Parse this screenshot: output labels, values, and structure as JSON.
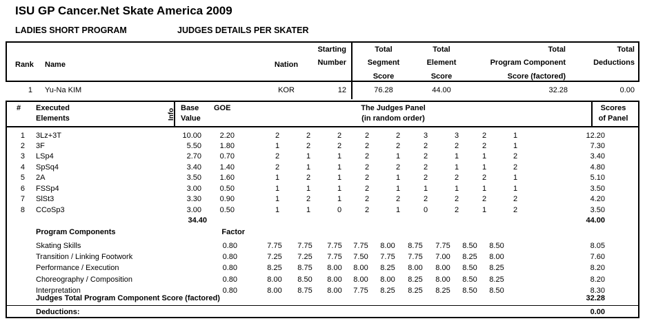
{
  "title": "ISU GP Cancer.Net Skate America 2009",
  "subtitle_left": "LADIES SHORT PROGRAM",
  "subtitle_right": "JUDGES DETAILS PER SKATER",
  "summary": {
    "headers": {
      "rank": "Rank",
      "name": "Name",
      "nation": "Nation",
      "starting_number": "Starting\nNumber",
      "segment_score": "Total\nSegment\nScore",
      "element_score": "Total\nElement\nScore",
      "pcs_factored": "Total\nProgram Component\nScore (factored)",
      "deductions": "Total\nDeductions"
    },
    "skater": {
      "rank": "1",
      "name": "Yu-Na KIM",
      "nation": "KOR",
      "starting_number": "12",
      "total_segment_score": "76.28",
      "total_element_score": "44.00",
      "total_pcs_factored": "32.28",
      "total_deductions": "0.00"
    }
  },
  "details": {
    "headers": {
      "num": "#",
      "executed": "Executed\nElements",
      "info": "Info",
      "base_value": "Base\nValue",
      "goe": "GOE",
      "judges_panel": "The Judges Panel\n(in random order)",
      "scores_of_panel": "Scores\nof Panel"
    },
    "elements": [
      {
        "num": "1",
        "name": "3Lz+3T",
        "info": "",
        "base_value": "10.00",
        "goe": "2.20",
        "judges": [
          "2",
          "2",
          "2",
          "2",
          "2",
          "3",
          "3",
          "2",
          "1"
        ],
        "panel_score": "12.20"
      },
      {
        "num": "2",
        "name": "3F",
        "info": "",
        "base_value": "5.50",
        "goe": "1.80",
        "judges": [
          "1",
          "2",
          "2",
          "2",
          "2",
          "2",
          "2",
          "2",
          "1"
        ],
        "panel_score": "7.30"
      },
      {
        "num": "3",
        "name": "LSp4",
        "info": "",
        "base_value": "2.70",
        "goe": "0.70",
        "judges": [
          "2",
          "1",
          "1",
          "2",
          "1",
          "2",
          "1",
          "1",
          "2"
        ],
        "panel_score": "3.40"
      },
      {
        "num": "4",
        "name": "SpSq4",
        "info": "",
        "base_value": "3.40",
        "goe": "1.40",
        "judges": [
          "2",
          "1",
          "1",
          "2",
          "2",
          "2",
          "1",
          "1",
          "2"
        ],
        "panel_score": "4.80"
      },
      {
        "num": "5",
        "name": "2A",
        "info": "",
        "base_value": "3.50",
        "goe": "1.60",
        "judges": [
          "1",
          "2",
          "1",
          "2",
          "1",
          "2",
          "2",
          "2",
          "1"
        ],
        "panel_score": "5.10"
      },
      {
        "num": "6",
        "name": "FSSp4",
        "info": "",
        "base_value": "3.00",
        "goe": "0.50",
        "judges": [
          "1",
          "1",
          "1",
          "2",
          "1",
          "1",
          "1",
          "1",
          "1"
        ],
        "panel_score": "3.50"
      },
      {
        "num": "7",
        "name": "SlSt3",
        "info": "",
        "base_value": "3.30",
        "goe": "0.90",
        "judges": [
          "1",
          "2",
          "1",
          "2",
          "2",
          "2",
          "2",
          "2",
          "2"
        ],
        "panel_score": "4.20"
      },
      {
        "num": "8",
        "name": "CCoSp3",
        "info": "",
        "base_value": "3.00",
        "goe": "0.50",
        "judges": [
          "1",
          "1",
          "0",
          "2",
          "1",
          "0",
          "2",
          "1",
          "2"
        ],
        "panel_score": "3.50"
      }
    ],
    "base_value_total": "34.40",
    "scores_total": "44.00",
    "components_header": {
      "label": "Program Components",
      "factor_label": "Factor"
    },
    "components": [
      {
        "name": "Skating Skills",
        "factor": "0.80",
        "judges": [
          "7.75",
          "7.75",
          "7.75",
          "7.75",
          "8.00",
          "8.75",
          "7.75",
          "8.50",
          "8.50"
        ],
        "score": "8.05"
      },
      {
        "name": "Transition / Linking Footwork",
        "factor": "0.80",
        "judges": [
          "7.25",
          "7.25",
          "7.75",
          "7.50",
          "7.75",
          "7.75",
          "7.00",
          "8.25",
          "8.00"
        ],
        "score": "7.60"
      },
      {
        "name": "Performance / Execution",
        "factor": "0.80",
        "judges": [
          "8.25",
          "8.75",
          "8.00",
          "8.00",
          "8.25",
          "8.00",
          "8.00",
          "8.50",
          "8.25"
        ],
        "score": "8.20"
      },
      {
        "name": "Choreography / Composition",
        "factor": "0.80",
        "judges": [
          "8.00",
          "8.50",
          "8.00",
          "8.00",
          "8.00",
          "8.25",
          "8.00",
          "8.50",
          "8.25"
        ],
        "score": "8.20"
      },
      {
        "name": "Interpretation",
        "factor": "0.80",
        "judges": [
          "8.00",
          "8.75",
          "8.00",
          "7.75",
          "8.25",
          "8.25",
          "8.25",
          "8.50",
          "8.50"
        ],
        "score": "8.30"
      }
    ],
    "pcs_total_row": {
      "label": "Judges Total Program Component Score (factored)",
      "value": "32.28"
    },
    "deductions_row": {
      "label": "Deductions:",
      "value": "0.00"
    }
  }
}
